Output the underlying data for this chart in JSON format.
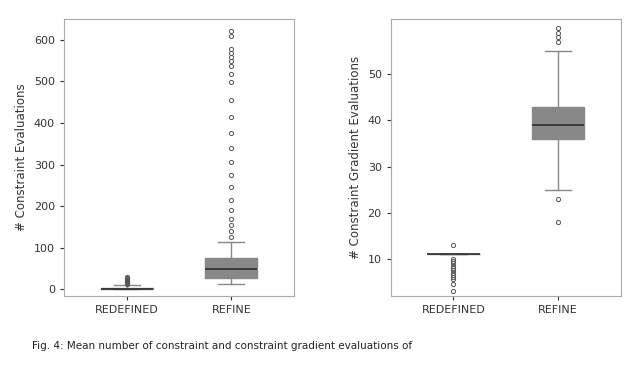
{
  "box_color": "#3a7ca5",
  "median_color": "#2d2d2d",
  "whisker_color": "#888888",
  "flier_color": "#555555",
  "cap_color": "#888888",
  "background_color": "#ffffff",
  "figure_caption": "Fig. 4: Mean number of constraint and constraint gradient evaluations of",
  "plot1": {
    "ylabel": "# Constraint Evaluations",
    "xtick_labels": [
      "REDEFINED",
      "REFINE"
    ],
    "ylim": [
      -15,
      650
    ],
    "yticks": [
      0,
      100,
      200,
      300,
      400,
      500,
      600
    ],
    "redefined": {
      "q1": 1,
      "median": 2,
      "q3": 4,
      "whislo": 0,
      "whishi": 10,
      "fliers": [
        14,
        16,
        18,
        20,
        22,
        24,
        27,
        30
      ]
    },
    "refine": {
      "q1": 27,
      "median": 50,
      "q3": 75,
      "whislo": 13,
      "whishi": 113,
      "fliers": [
        125,
        140,
        155,
        170,
        190,
        215,
        245,
        275,
        305,
        340,
        375,
        415,
        455,
        498,
        518,
        538,
        548,
        558,
        568,
        578,
        608,
        622
      ]
    }
  },
  "plot2": {
    "ylabel": "# Constraint Gradient Evaluations",
    "xtick_labels": [
      "REDEFINED",
      "REFINE"
    ],
    "ylim": [
      2,
      62
    ],
    "yticks": [
      10,
      20,
      30,
      40,
      50
    ],
    "redefined": {
      "q1": 11,
      "median": 11,
      "q3": 11,
      "whislo": 11,
      "whishi": 11,
      "fliers": [
        3.0,
        4.5,
        5.5,
        6.0,
        6.5,
        7.0,
        7.5,
        8.0,
        8.5,
        9.0,
        9.5,
        10.0,
        13.0
      ]
    },
    "refine": {
      "q1": 36,
      "median": 39,
      "q3": 43,
      "whislo": 25,
      "whishi": 55,
      "fliers": [
        18,
        23,
        57,
        58,
        59,
        60
      ]
    }
  }
}
